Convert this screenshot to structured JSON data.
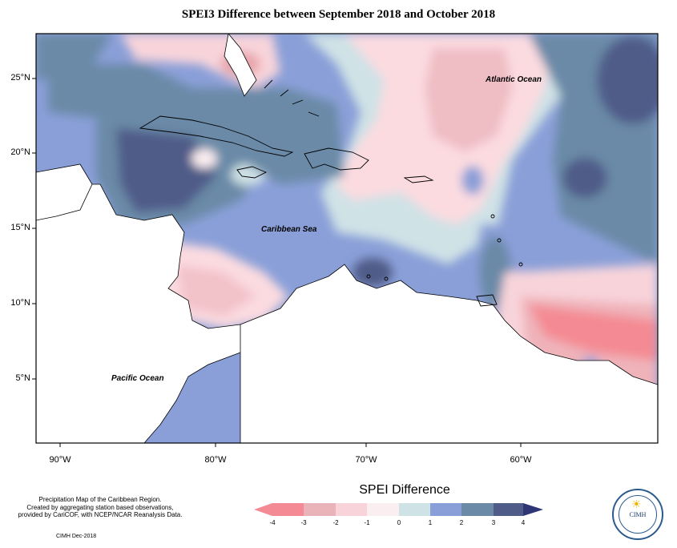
{
  "title": "SPEI3 Difference between September 2018 and October 2018",
  "axes": {
    "latitude_ticks": [
      "25°N",
      "20°N",
      "15°N",
      "10°N",
      "5°N"
    ],
    "longitude_ticks": [
      "90°W",
      "80°W",
      "70°W",
      "60°W"
    ]
  },
  "map_labels": {
    "atlantic": "Atlantic Ocean",
    "caribbean": "Caribbean Sea",
    "pacific": "Pacific Ocean"
  },
  "legend": {
    "title": "SPEI Difference",
    "ticks": [
      "-4",
      "-3",
      "-2",
      "-1",
      "0",
      "1",
      "2",
      "3",
      "4"
    ],
    "colors": [
      "#f48a93",
      "#eab3b9",
      "#f8d4da",
      "#fbeef0",
      "#cfe2e6",
      "#8a9fd8",
      "#6a8aa7",
      "#4f5c88"
    ]
  },
  "footer": {
    "line1": "Precipitation Map of the Caribbean Region.",
    "line2": "Created by aggregating station based observations,",
    "line3": "provided by CariCOF, with NCEP/NCAR Reanalysis Data.",
    "credit": "CIMH Dec-2018"
  },
  "logo": {
    "text": "CIMH",
    "icon": "sun-icon"
  },
  "chart_data": {
    "type": "heatmap",
    "title": "SPEI3 Difference between September 2018 and October 2018",
    "xlabel": "",
    "ylabel": "",
    "xlim": [
      "92°W",
      "52°W"
    ],
    "ylim": [
      "1°N",
      "28°N"
    ],
    "colorbar": {
      "label": "SPEI Difference",
      "range": [
        -4,
        4
      ],
      "ticks": [
        -4,
        -3,
        -2,
        -1,
        0,
        1,
        2,
        3,
        4
      ]
    }
  }
}
